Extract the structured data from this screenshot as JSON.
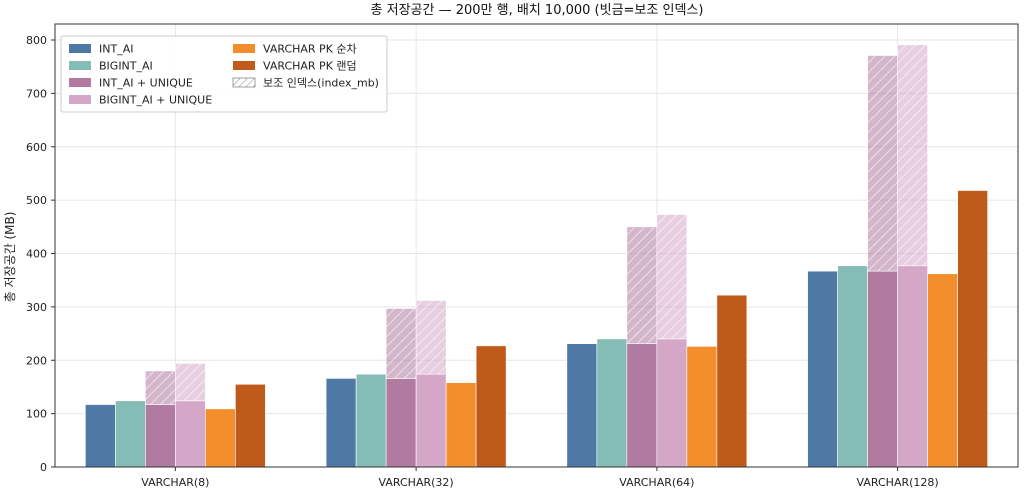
{
  "chart_data": {
    "type": "bar",
    "title": "총 저장공간 — 200만 행, 배치 10,000 (빗금=보조 인덱스)",
    "xlabel": "",
    "ylabel": "총 저장공간 (MB)",
    "ylim": [
      0,
      830
    ],
    "yticks": [
      0,
      100,
      200,
      300,
      400,
      500,
      600,
      700,
      800
    ],
    "grid": true,
    "legend_position": "top-left",
    "categories": [
      "VARCHAR(8)",
      "VARCHAR(32)",
      "VARCHAR(64)",
      "VARCHAR(128)"
    ],
    "series": [
      {
        "name": "INT_AI",
        "color": "#4e79a7",
        "values": [
          117,
          166,
          231,
          367
        ],
        "index_mb": [
          0,
          0,
          0,
          0
        ]
      },
      {
        "name": "BIGINT_AI",
        "color": "#86bcb6",
        "values": [
          124,
          174,
          240,
          377
        ],
        "index_mb": [
          0,
          0,
          0,
          0
        ]
      },
      {
        "name": "INT_AI + UNIQUE",
        "color": "#b07aa1",
        "values": [
          117,
          166,
          231,
          367
        ],
        "index_mb": [
          63,
          131,
          219,
          404
        ]
      },
      {
        "name": "BIGINT_AI + UNIQUE",
        "color": "#d4a6c8",
        "values": [
          124,
          174,
          240,
          377
        ],
        "index_mb": [
          70,
          138,
          233,
          414
        ]
      },
      {
        "name": "VARCHAR PK 순차",
        "color": "#f28e2b",
        "values": [
          109,
          158,
          226,
          362
        ],
        "index_mb": [
          0,
          0,
          0,
          0
        ]
      },
      {
        "name": "VARCHAR PK 랜덤",
        "color": "#c05a1a",
        "values": [
          155,
          227,
          322,
          518
        ],
        "index_mb": [
          0,
          0,
          0,
          0
        ]
      }
    ],
    "hatch_legend": "보조 인덱스(index_mb)"
  }
}
